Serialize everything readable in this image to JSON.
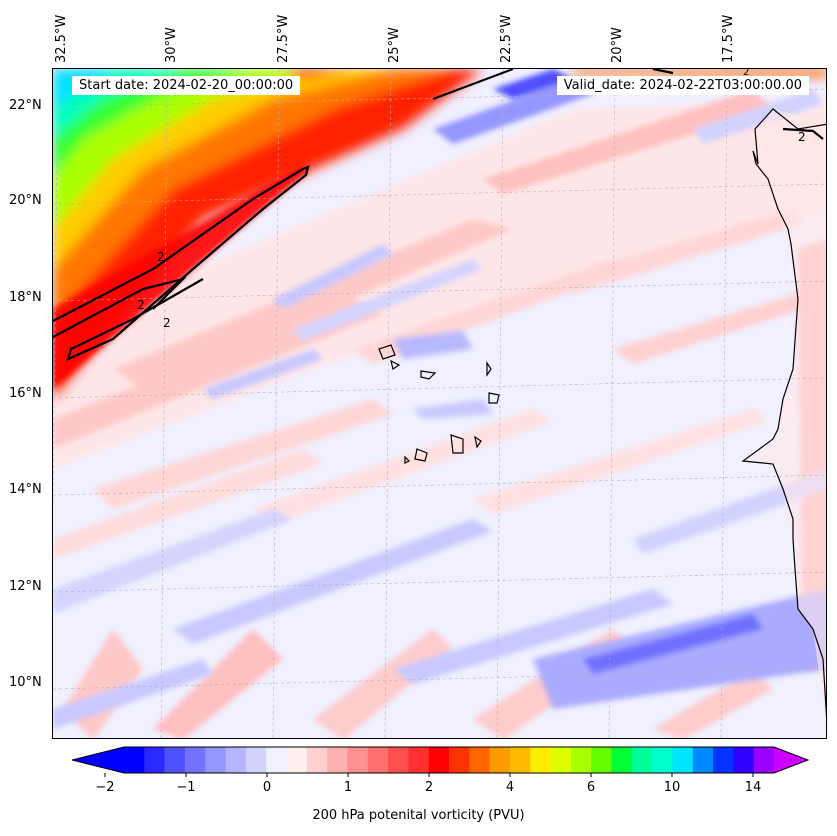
{
  "header": {
    "start_date": "Start date: 2024-02-20_00:00:00",
    "valid_date": "Valid_date: 2024-02-22T03:00:00.00"
  },
  "axes": {
    "lon_labels": [
      "32.5°W",
      "30°W",
      "27.5°W",
      "25°W",
      "22.5°W",
      "20°W",
      "17.5°W"
    ],
    "lat_labels": [
      "22°N",
      "20°N",
      "18°N",
      "16°N",
      "14°N",
      "12°N",
      "10°N"
    ]
  },
  "contour": {
    "level_label": "2",
    "line_color": "#000000"
  },
  "colorbar": {
    "title": "200 hPa potenital vorticity (PVU)",
    "tick_labels": [
      "−2",
      "−1",
      "0",
      "1",
      "2",
      "4",
      "6",
      "10",
      "14"
    ],
    "colors": [
      "#0000ff",
      "#2a2aff",
      "#5050ff",
      "#7373ff",
      "#9595ff",
      "#b4b4ff",
      "#d2d2ff",
      "#f0f0ff",
      "#ffeeee",
      "#ffd0d0",
      "#ffb0b0",
      "#ff9090",
      "#ff7070",
      "#ff5050",
      "#ff3030",
      "#ff0000",
      "#ff3300",
      "#ff6600",
      "#ff9900",
      "#ffbb00",
      "#ffee00",
      "#ddff00",
      "#aaff00",
      "#66ff00",
      "#00ff33",
      "#00ff99",
      "#00ffcc",
      "#00e5ff",
      "#0088ff",
      "#0033ff",
      "#3300ff",
      "#9900ff"
    ],
    "under_color": "#0000ff",
    "over_color": "#cc00ff"
  },
  "features": {
    "land_color": "#ffffff",
    "coast_color": "#000000",
    "grid_color": "#b0b0b0"
  }
}
